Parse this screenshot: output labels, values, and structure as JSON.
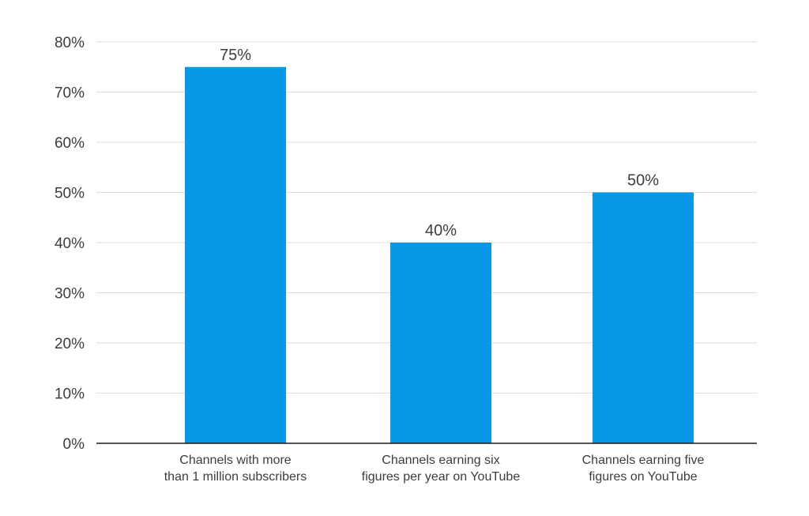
{
  "chart_data": {
    "type": "bar",
    "title": "",
    "xlabel": "",
    "ylabel": "",
    "ylim": [
      0,
      80
    ],
    "y_ticks": [
      0,
      10,
      20,
      30,
      40,
      50,
      60,
      70,
      80
    ],
    "y_tick_labels": [
      "0%",
      "10%",
      "20%",
      "30%",
      "40%",
      "50%",
      "60%",
      "70%",
      "80%"
    ],
    "grid": true,
    "legend": "none",
    "categories": [
      [
        "Channels with more",
        "than 1 million subscribers"
      ],
      [
        "Channels earning six",
        "figures per year on YouTube"
      ],
      [
        "Channels earning five",
        "figures on YouTube"
      ]
    ],
    "values": [
      75,
      40,
      50
    ],
    "value_labels": [
      "75%",
      "40%",
      "50%"
    ],
    "bar_color": "#0898e6",
    "grid_color": "#dcdcdc",
    "axis_color": "#1a1a1a",
    "text_color": "#3d3d3d"
  }
}
